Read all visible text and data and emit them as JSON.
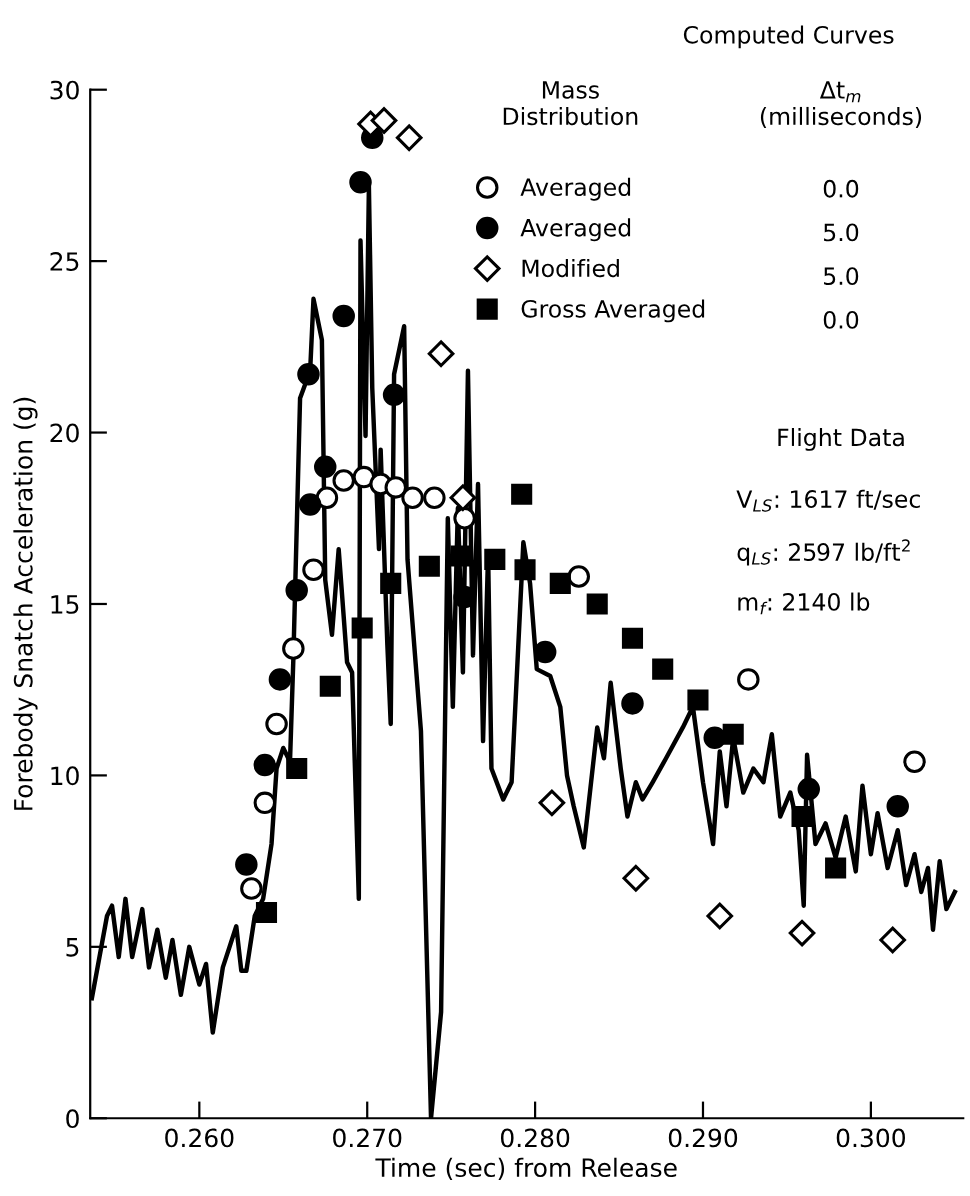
{
  "chart_data": {
    "type": "scatter",
    "xlabel": "Time (sec) from Release",
    "ylabel": "Forebody Snatch Acceleration (g)",
    "legend_title": "Computed Curves",
    "xlim": [
      0.2535,
      0.3055
    ],
    "ylim": [
      0,
      30
    ],
    "xticks": [
      {
        "value": 0.26,
        "label": "0.260"
      },
      {
        "value": 0.27,
        "label": "0.270"
      },
      {
        "value": 0.28,
        "label": "0.280"
      },
      {
        "value": 0.29,
        "label": "0.290"
      },
      {
        "value": 0.3,
        "label": "0.300"
      }
    ],
    "yticks": [
      0,
      5,
      10,
      15,
      20,
      25,
      30
    ],
    "grid": false,
    "legend": "top right",
    "annotations": [
      "Mass\nDistribution",
      "Δt$_{m}$\n(milliseconds)",
      "0.0",
      "5.0",
      "5.0",
      "0.0",
      "Flight Data",
      "V$_{LS}$: 1617 ft/sec",
      "q$_{LS}$: 2597 lb/ft$^{2}$",
      "m$_{f}$: 2140 lb"
    ],
    "series": [
      {
        "type": "line",
        "color": "#000000",
        "marker": "none",
        "line_style": "solid",
        "x": [
          0.2536,
          0.2545,
          0.2548,
          0.2552,
          0.2556,
          0.256,
          0.2566,
          0.257,
          0.2575,
          0.258,
          0.2584,
          0.2589,
          0.2594,
          0.26,
          0.2604,
          0.2608,
          0.2614,
          0.2618,
          0.2622,
          0.2625,
          0.2628,
          0.2633,
          0.2638,
          0.2643,
          0.2646,
          0.265,
          0.2654,
          0.2656,
          0.266,
          0.2666,
          0.2668,
          0.2673,
          0.2675,
          0.2679,
          0.2683,
          0.2688,
          0.2691,
          0.2695,
          0.2696,
          0.2699,
          0.2701,
          0.2703,
          0.2707,
          0.2708,
          0.2712,
          0.2714,
          0.2716,
          0.2722,
          0.2724,
          0.2732,
          0.2738,
          0.2744,
          0.2748,
          0.2751,
          0.2754,
          0.2757,
          0.276,
          0.2763,
          0.2766,
          0.2769,
          0.2772,
          0.2774,
          0.2781,
          0.2786,
          0.2793,
          0.2797,
          0.2801,
          0.2809,
          0.2815,
          0.2819,
          0.2823,
          0.2829,
          0.2837,
          0.2841,
          0.2845,
          0.2851,
          0.2855,
          0.286,
          0.2864,
          0.287,
          0.2878,
          0.2888,
          0.2894,
          0.29,
          0.2906,
          0.291,
          0.2914,
          0.2918,
          0.2924,
          0.293,
          0.2936,
          0.2941,
          0.2946,
          0.2952,
          0.2957,
          0.296,
          0.2962,
          0.2967,
          0.2973,
          0.2979,
          0.2985,
          0.2991,
          0.2995,
          0.3,
          0.3004,
          0.301,
          0.3016,
          0.3021,
          0.3026,
          0.303,
          0.3034,
          0.3037,
          0.3041,
          0.3045,
          0.305
        ],
        "values": [
          3.5,
          5.9,
          6.2,
          4.7,
          6.4,
          4.7,
          6.1,
          4.4,
          5.5,
          4.1,
          5.2,
          3.6,
          5.0,
          3.9,
          4.5,
          2.5,
          4.4,
          5.0,
          5.6,
          4.3,
          4.3,
          5.9,
          6.4,
          8.0,
          10.2,
          10.8,
          10.4,
          13.4,
          21.0,
          21.8,
          23.9,
          22.7,
          15.7,
          14.1,
          16.6,
          13.3,
          13.0,
          6.4,
          25.6,
          19.9,
          27.2,
          21.3,
          16.6,
          19.5,
          13.8,
          11.5,
          21.7,
          23.1,
          16.3,
          11.3,
          0,
          3.1,
          17.5,
          12.0,
          17.8,
          13.0,
          21.8,
          13.5,
          18.5,
          11.0,
          16.5,
          10.2,
          9.3,
          9.8,
          16.8,
          15.6,
          13.1,
          12.9,
          12.0,
          10.0,
          9.1,
          7.9,
          11.4,
          10.5,
          12.7,
          10.2,
          8.8,
          9.8,
          9.3,
          9.8,
          10.5,
          11.4,
          12.0,
          9.8,
          8.0,
          10.7,
          9.1,
          11.1,
          9.5,
          10.2,
          9.8,
          11.2,
          8.8,
          9.5,
          8.4,
          6.2,
          10.6,
          8.0,
          8.6,
          7.6,
          8.8,
          7.2,
          9.7,
          7.7,
          8.9,
          7.3,
          8.4,
          6.8,
          7.7,
          6.6,
          7.3,
          5.5,
          7.5,
          6.1,
          6.6
        ]
      },
      {
        "name": "Averaged",
        "color": "#ffffff",
        "marker": "circle",
        "x": [
          0.2631,
          0.2639,
          0.2646,
          0.2656,
          0.2668,
          0.2676,
          0.2686,
          0.2698,
          0.2708,
          0.2717,
          0.2727,
          0.274,
          0.2758,
          0.2826,
          0.2927,
          0.3026
        ],
        "values": [
          6.7,
          9.2,
          11.5,
          13.7,
          16.0,
          18.1,
          18.6,
          18.7,
          18.5,
          18.4,
          18.1,
          18.1,
          17.5,
          15.8,
          12.8,
          10.4
        ]
      },
      {
        "name": "Averaged",
        "color": "#000000",
        "marker": "circle",
        "x": [
          0.2628,
          0.2639,
          0.2648,
          0.2658,
          0.2665,
          0.2666,
          0.2675,
          0.2686,
          0.2696,
          0.2703,
          0.2716,
          0.2758,
          0.2806,
          0.2858,
          0.2907,
          0.2963,
          0.3016
        ],
        "values": [
          7.4,
          10.3,
          12.8,
          15.4,
          21.7,
          17.9,
          19.0,
          23.4,
          27.3,
          28.6,
          21.1,
          15.2,
          13.6,
          12.1,
          11.1,
          9.6,
          9.1
        ]
      },
      {
        "name": "Modified",
        "color": "#ffffff",
        "marker": "diamond",
        "x": [
          0.2702,
          0.271,
          0.2725,
          0.2744,
          0.2757,
          0.281,
          0.286,
          0.291,
          0.2959,
          0.3013
        ],
        "values": [
          29.0,
          29.1,
          28.6,
          22.3,
          18.1,
          9.2,
          7.0,
          5.9,
          5.4,
          5.2
        ]
      },
      {
        "name": "Gross Averaged",
        "color": "#000000",
        "marker": "square",
        "x": [
          0.264,
          0.2658,
          0.2678,
          0.2697,
          0.2714,
          0.2737,
          0.2756,
          0.2776,
          0.2792,
          0.2794,
          0.2815,
          0.2837,
          0.2858,
          0.2876,
          0.2897,
          0.2918,
          0.2959,
          0.2979
        ],
        "values": [
          6.0,
          10.2,
          12.6,
          14.3,
          15.6,
          16.1,
          16.4,
          16.3,
          18.2,
          16.0,
          15.6,
          15.0,
          14.0,
          13.1,
          12.2,
          11.2,
          8.8,
          7.3
        ]
      }
    ]
  }
}
